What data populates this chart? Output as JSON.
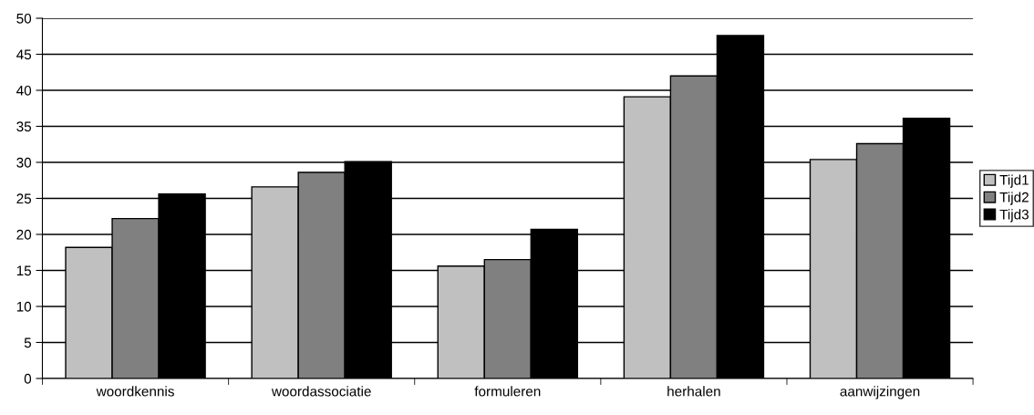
{
  "chart_data": {
    "type": "bar",
    "categories": [
      "woordkennis",
      "woordassociatie",
      "formuleren",
      "herhalen",
      "aanwijzingen"
    ],
    "series": [
      {
        "name": "Tijd1",
        "color": "#c0c0c0",
        "values": [
          18.2,
          26.6,
          15.6,
          39.1,
          30.4
        ]
      },
      {
        "name": "Tijd2",
        "color": "#808080",
        "values": [
          22.2,
          28.6,
          16.5,
          42.0,
          32.6
        ]
      },
      {
        "name": "Tijd3",
        "color": "#000000",
        "values": [
          25.6,
          30.1,
          20.7,
          47.6,
          36.1
        ]
      }
    ],
    "ylim": [
      0,
      50
    ],
    "yticks": [
      0,
      5,
      10,
      15,
      20,
      25,
      30,
      35,
      40,
      45,
      50
    ],
    "grid": "y",
    "legend": "right"
  }
}
